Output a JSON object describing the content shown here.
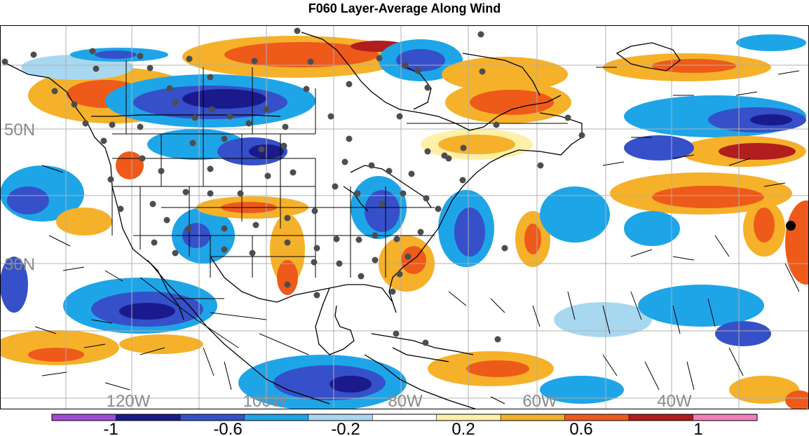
{
  "title": "F060 Layer-Average Along Wind",
  "map": {
    "lon_labels": [
      "120W",
      "100W",
      "80W",
      "60W",
      "40W"
    ],
    "lat_labels": [
      "50N",
      "30N"
    ],
    "gridline_color": "#b0b0b0",
    "coastline_color": "#000000",
    "station_color": "#4d4d4d"
  },
  "colorbar": {
    "tick_labels": [
      "-1",
      "-0.6",
      "-0.2",
      "0.2",
      "0.6",
      "1"
    ],
    "colors": [
      "#a14bd4",
      "#1a1a8c",
      "#3550c8",
      "#1ea5e8",
      "#a8d8f0",
      "#ffffff",
      "#fff0a8",
      "#f5b12a",
      "#ee5a1a",
      "#b01e1e",
      "#f080b8"
    ]
  }
}
